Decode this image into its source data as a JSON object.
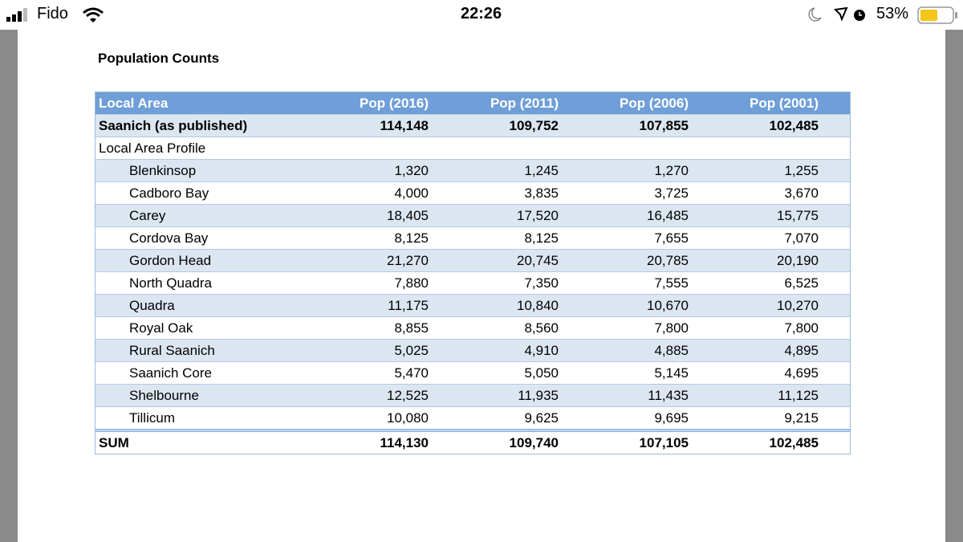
{
  "status_bar": {
    "carrier": "Fido",
    "time": "22:26",
    "battery": "53%"
  },
  "document": {
    "title": "Population Counts",
    "table": {
      "header": [
        "Local Area",
        "Pop (2016)",
        "Pop (2011)",
        "Pop (2006)",
        "Pop (2001)"
      ],
      "published": [
        "Saanich (as published)",
        "114,148",
        "109,752",
        "107,855",
        "102,485"
      ],
      "section": "Local Area Profile",
      "rows": [
        [
          "Blenkinsop",
          "1,320",
          "1,245",
          "1,270",
          "1,255"
        ],
        [
          "Cadboro Bay",
          "4,000",
          "3,835",
          "3,725",
          "3,670"
        ],
        [
          "Carey",
          "18,405",
          "17,520",
          "16,485",
          "15,775"
        ],
        [
          "Cordova Bay",
          "8,125",
          "8,125",
          "7,655",
          "7,070"
        ],
        [
          "Gordon Head",
          "21,270",
          "20,745",
          "20,785",
          "20,190"
        ],
        [
          "North Quadra",
          "7,880",
          "7,350",
          "7,555",
          "6,525"
        ],
        [
          "Quadra",
          "11,175",
          "10,840",
          "10,670",
          "10,270"
        ],
        [
          "Royal Oak",
          "8,855",
          "8,560",
          "7,800",
          "7,800"
        ],
        [
          "Rural Saanich",
          "5,025",
          "4,910",
          "4,885",
          "4,895"
        ],
        [
          "Saanich Core",
          "5,470",
          "5,050",
          "5,145",
          "4,695"
        ],
        [
          "Shelbourne",
          "12,525",
          "11,935",
          "11,435",
          "11,125"
        ],
        [
          "Tillicum",
          "10,080",
          "9,625",
          "9,695",
          "9,215"
        ]
      ],
      "sum": [
        "SUM",
        "114,130",
        "109,740",
        "107,105",
        "102,485"
      ]
    }
  }
}
